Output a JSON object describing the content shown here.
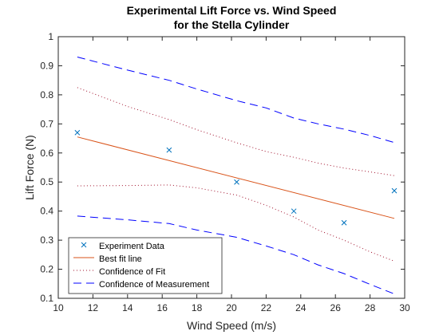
{
  "chart_data": {
    "type": "line",
    "title_line1": "Experimental Lift Force vs. Wind Speed",
    "title_line2": "for the Stella Cylinder",
    "xlabel": "Wind Speed (m/s)",
    "ylabel": "Lift Force (N)",
    "xlim": [
      10,
      30
    ],
    "ylim": [
      0.1,
      1
    ],
    "xticks": [
      10,
      12,
      14,
      16,
      18,
      20,
      22,
      24,
      26,
      28,
      30
    ],
    "yticks": [
      0.1,
      0.2,
      0.3,
      0.4,
      0.5,
      0.6,
      0.7,
      0.8,
      0.9,
      1
    ],
    "xtick_labels": [
      "10",
      "12",
      "14",
      "16",
      "18",
      "20",
      "22",
      "24",
      "26",
      "28",
      "30"
    ],
    "ytick_labels": [
      "0.1",
      "0.2",
      "0.3",
      "0.4",
      "0.5",
      "0.6",
      "0.7",
      "0.8",
      "0.9",
      "1"
    ],
    "grid": false,
    "legend_position": "bottom-left",
    "series": [
      {
        "name": "Experiment Data",
        "style": "marker-x",
        "color": "#0072BD",
        "x": [
          11.1,
          16.4,
          20.3,
          23.6,
          26.5,
          29.4
        ],
        "y": [
          0.67,
          0.61,
          0.5,
          0.4,
          0.36,
          0.47
        ]
      },
      {
        "name": "Best fit line",
        "style": "solid",
        "color": "#D95319",
        "x": [
          11.1,
          29.4
        ],
        "y": [
          0.655,
          0.375
        ]
      },
      {
        "name": "Confidence of Fit",
        "style": "dotted",
        "color": "#A2142F",
        "upper": {
          "x": [
            11.1,
            14,
            16.4,
            18,
            20.3,
            22,
            23.6,
            25,
            26.5,
            28,
            29.4
          ],
          "y": [
            0.825,
            0.76,
            0.715,
            0.68,
            0.635,
            0.605,
            0.585,
            0.565,
            0.548,
            0.535,
            0.522
          ]
        },
        "lower": {
          "x": [
            11.1,
            14,
            16.4,
            18,
            20.3,
            22,
            23.6,
            25,
            26.5,
            28,
            29.4
          ],
          "y": [
            0.487,
            0.488,
            0.49,
            0.48,
            0.455,
            0.42,
            0.38,
            0.335,
            0.3,
            0.26,
            0.228
          ]
        }
      },
      {
        "name": "Confidence of Measurement",
        "style": "dashed",
        "color": "#0000FF",
        "upper": {
          "x": [
            11.1,
            14,
            16.4,
            18,
            20.3,
            22,
            23.6,
            25,
            26.5,
            28,
            29.4
          ],
          "y": [
            0.93,
            0.885,
            0.85,
            0.82,
            0.78,
            0.755,
            0.72,
            0.7,
            0.682,
            0.66,
            0.636
          ]
        },
        "lower": {
          "x": [
            11.1,
            14,
            16.4,
            18,
            20.3,
            22,
            23.6,
            25,
            26.5,
            28,
            29.4
          ],
          "y": [
            0.383,
            0.37,
            0.357,
            0.335,
            0.31,
            0.28,
            0.25,
            0.215,
            0.185,
            0.148,
            0.115
          ]
        }
      }
    ]
  }
}
